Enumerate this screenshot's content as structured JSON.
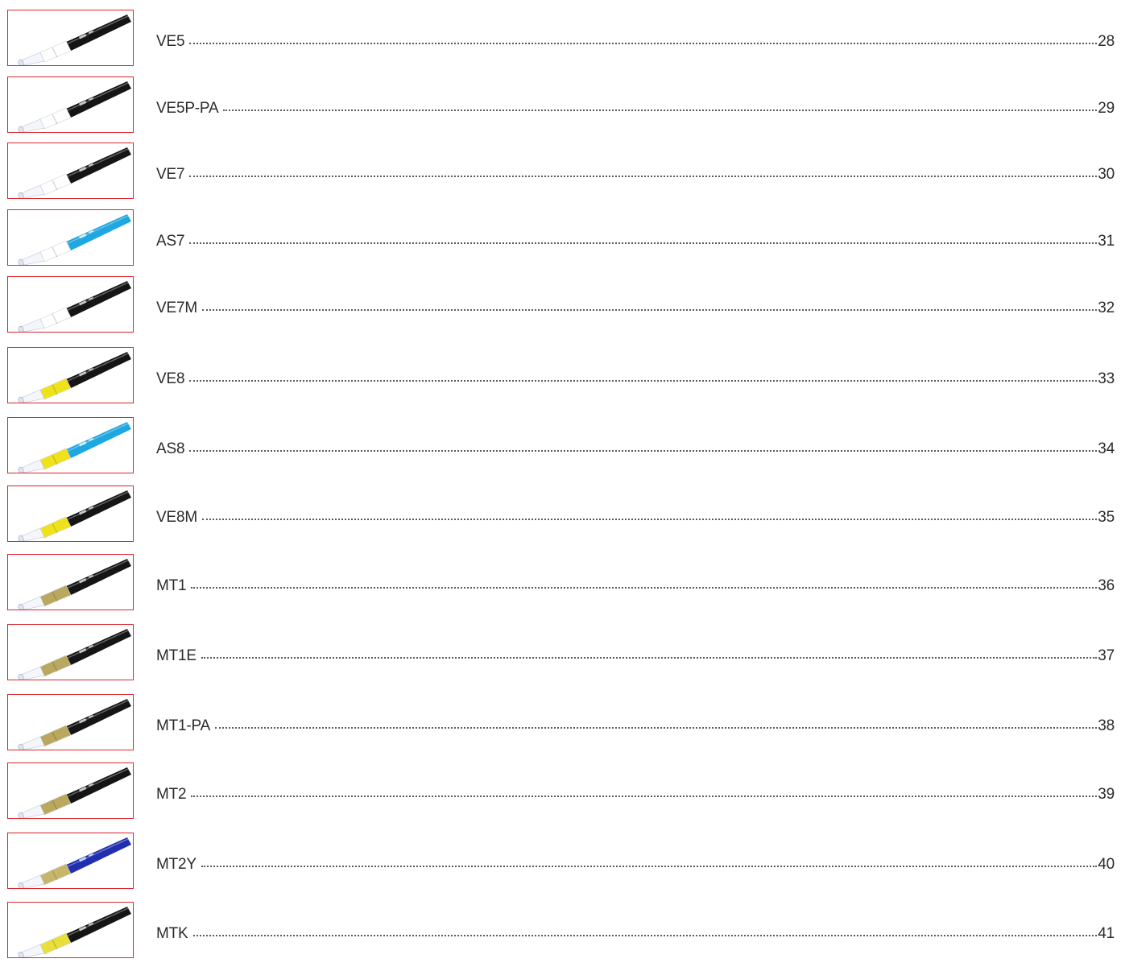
{
  "entries": [
    {
      "name": "VE5",
      "page": "28",
      "inner": "#f4f6fb",
      "band": "#ffffff",
      "jacket": "#151515",
      "print": "#c8c8c8"
    },
    {
      "name": "VE5P-PA",
      "page": "29",
      "inner": "#f4f6fb",
      "band": "#ffffff",
      "jacket": "#151515",
      "print": "#c8c8c8"
    },
    {
      "name": "VE7",
      "page": "30",
      "inner": "#f4f6fb",
      "band": "#ffffff",
      "jacket": "#151515",
      "print": "#c8c8c8"
    },
    {
      "name": "AS7",
      "page": "31",
      "inner": "#f4f6fb",
      "band": "#ffffff",
      "jacket": "#1ea7e0",
      "print": "#d6eef9"
    },
    {
      "name": "VE7M",
      "page": "32",
      "inner": "#f4f6fb",
      "band": "#ffffff",
      "jacket": "#151515",
      "print": "#c8c8c8"
    },
    {
      "name": "VE8",
      "page": "33",
      "inner": "#f4f6fb",
      "band": "#f0e21a",
      "jacket": "#151515",
      "print": "#c8c8c8"
    },
    {
      "name": "AS8",
      "page": "34",
      "inner": "#f4f6fb",
      "band": "#f0e21a",
      "jacket": "#1ea7e0",
      "print": "#d6eef9"
    },
    {
      "name": "VE8M",
      "page": "35",
      "inner": "#f4f6fb",
      "band": "#f0e21a",
      "jacket": "#151515",
      "print": "#c8c8c8"
    },
    {
      "name": "MT1",
      "page": "36",
      "inner": "#f4f6fb",
      "band": "#b9a85e",
      "jacket": "#151515",
      "print": "#c8c8c8"
    },
    {
      "name": "MT1E",
      "page": "37",
      "inner": "#f4f6fb",
      "band": "#b9a85e",
      "jacket": "#151515",
      "print": "#c8c8c8"
    },
    {
      "name": "MT1-PA",
      "page": "38",
      "inner": "#f4f6fb",
      "band": "#b9a85e",
      "jacket": "#151515",
      "print": "#c8c8c8"
    },
    {
      "name": "MT2",
      "page": "39",
      "inner": "#f4f6fb",
      "band": "#b9a85e",
      "jacket": "#151515",
      "print": "#c8c8c8"
    },
    {
      "name": "MT2Y",
      "page": "40",
      "inner": "#f4f6fb",
      "band": "#c7b66a",
      "jacket": "#1f2fb0",
      "print": "#c9cff2"
    },
    {
      "name": "MTK",
      "page": "41",
      "inner": "#f4f6fb",
      "band": "#e8df3a",
      "jacket": "#151515",
      "print": "#c8c8c8"
    }
  ]
}
